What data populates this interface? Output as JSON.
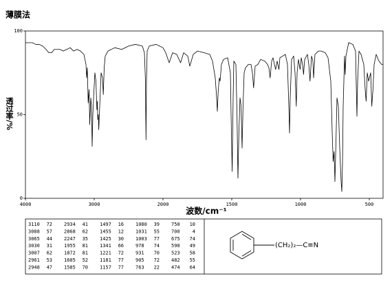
{
  "chart_data": {
    "type": "line",
    "title": "薄膜法",
    "xlabel": "波数/cm⁻¹",
    "ylabel": "透过率/%",
    "xlim": [
      4000,
      400
    ],
    "x_scale_change": 2000,
    "ylim": [
      0,
      100
    ],
    "xticks": [
      4000,
      3000,
      2000,
      1500,
      1000,
      500
    ],
    "yticks": [
      0,
      50,
      100
    ],
    "series": [
      {
        "color": "#000000",
        "x": [
          4000,
          3900,
          3850,
          3800,
          3750,
          3700,
          3660,
          3620,
          3580,
          3500,
          3450,
          3400,
          3350,
          3300,
          3250,
          3200,
          3150,
          3120,
          3110,
          3100,
          3088,
          3075,
          3065,
          3050,
          3040,
          3030,
          3020,
          3007,
          2990,
          2975,
          2961,
          2955,
          2948,
          2940,
          2934,
          2920,
          2900,
          2880,
          2868,
          2855,
          2840,
          2800,
          2700,
          2600,
          2500,
          2400,
          2300,
          2270,
          2255,
          2247,
          2240,
          2230,
          2200,
          2100,
          2050,
          2000,
          1980,
          1955,
          1930,
          1900,
          1872,
          1850,
          1820,
          1805,
          1780,
          1750,
          1700,
          1660,
          1640,
          1620,
          1610,
          1605,
          1598,
          1590,
          1585,
          1575,
          1560,
          1530,
          1510,
          1505,
          1497,
          1490,
          1485,
          1470,
          1462,
          1455,
          1448,
          1440,
          1432,
          1425,
          1418,
          1410,
          1400,
          1380,
          1360,
          1350,
          1341,
          1330,
          1310,
          1290,
          1260,
          1240,
          1230,
          1221,
          1210,
          1200,
          1190,
          1181,
          1170,
          1157,
          1150,
          1130,
          1110,
          1095,
          1085,
          1080,
          1075,
          1065,
          1050,
          1040,
          1031,
          1025,
          1015,
          1003,
          995,
          985,
          978,
          970,
          950,
          940,
          931,
          920,
          910,
          905,
          895,
          870,
          850,
          820,
          800,
          780,
          770,
          763,
          756,
          750,
          742,
          735,
          725,
          715,
          705,
          700,
          695,
          690,
          680,
          675,
          670,
          650,
          620,
          600,
          590,
          585,
          575,
          560,
          540,
          530,
          523,
          515,
          505,
          490,
          482,
          478,
          474,
          465,
          450,
          430,
          410,
          400
        ],
        "values": [
          93,
          93,
          92,
          92,
          91,
          89,
          87,
          87,
          89,
          89,
          88,
          89,
          90,
          88,
          89,
          88,
          86,
          80,
          72,
          78,
          57,
          65,
          44,
          60,
          55,
          31,
          50,
          62,
          75,
          70,
          53,
          58,
          47,
          50,
          41,
          55,
          75,
          72,
          62,
          78,
          85,
          88,
          90,
          89,
          91,
          92,
          91,
          87,
          70,
          35,
          70,
          88,
          91,
          92,
          91,
          90,
          87,
          81,
          87,
          86,
          81,
          87,
          85,
          79,
          86,
          88,
          87,
          86,
          82,
          72,
          60,
          52,
          65,
          72,
          70,
          80,
          83,
          84,
          75,
          50,
          16,
          60,
          82,
          80,
          50,
          12,
          40,
          60,
          55,
          30,
          55,
          75,
          78,
          80,
          80,
          75,
          66,
          79,
          80,
          83,
          82,
          80,
          78,
          72,
          82,
          84,
          80,
          77,
          82,
          77,
          84,
          85,
          86,
          80,
          55,
          39,
          60,
          83,
          85,
          75,
          55,
          75,
          83,
          77,
          84,
          80,
          74,
          83,
          86,
          80,
          70,
          85,
          82,
          72,
          86,
          88,
          88,
          87,
          84,
          70,
          40,
          22,
          28,
          10,
          35,
          60,
          55,
          30,
          10,
          4,
          20,
          55,
          85,
          74,
          85,
          93,
          92,
          88,
          49,
          70,
          88,
          86,
          80,
          65,
          58,
          75,
          70,
          75,
          55,
          60,
          64,
          80,
          86,
          82,
          80,
          80
        ]
      }
    ]
  },
  "peak_table": [
    [
      [
        3110,
        72
      ],
      [
        3088,
        57
      ],
      [
        3065,
        44
      ],
      [
        3030,
        31
      ],
      [
        3007,
        62
      ],
      [
        2961,
        53
      ],
      [
        2948,
        47
      ]
    ],
    [
      [
        2934,
        41
      ],
      [
        2868,
        62
      ],
      [
        2247,
        35
      ],
      [
        1955,
        81
      ],
      [
        1872,
        81
      ],
      [
        1605,
        52
      ],
      [
        1585,
        70
      ]
    ],
    [
      [
        1497,
        16
      ],
      [
        1455,
        12
      ],
      [
        1425,
        30
      ],
      [
        1341,
        66
      ],
      [
        1221,
        72
      ],
      [
        1181,
        77
      ],
      [
        1157,
        77
      ]
    ],
    [
      [
        1080,
        39
      ],
      [
        1031,
        55
      ],
      [
        1003,
        77
      ],
      [
        978,
        74
      ],
      [
        931,
        70
      ],
      [
        905,
        72
      ],
      [
        763,
        22
      ]
    ],
    [
      [
        750,
        10
      ],
      [
        700,
        4
      ],
      [
        675,
        74
      ],
      [
        590,
        49
      ],
      [
        523,
        58
      ],
      [
        482,
        55
      ],
      [
        474,
        64
      ]
    ]
  ],
  "structure": {
    "substituent": "(CH₂)₂—C≡N"
  }
}
